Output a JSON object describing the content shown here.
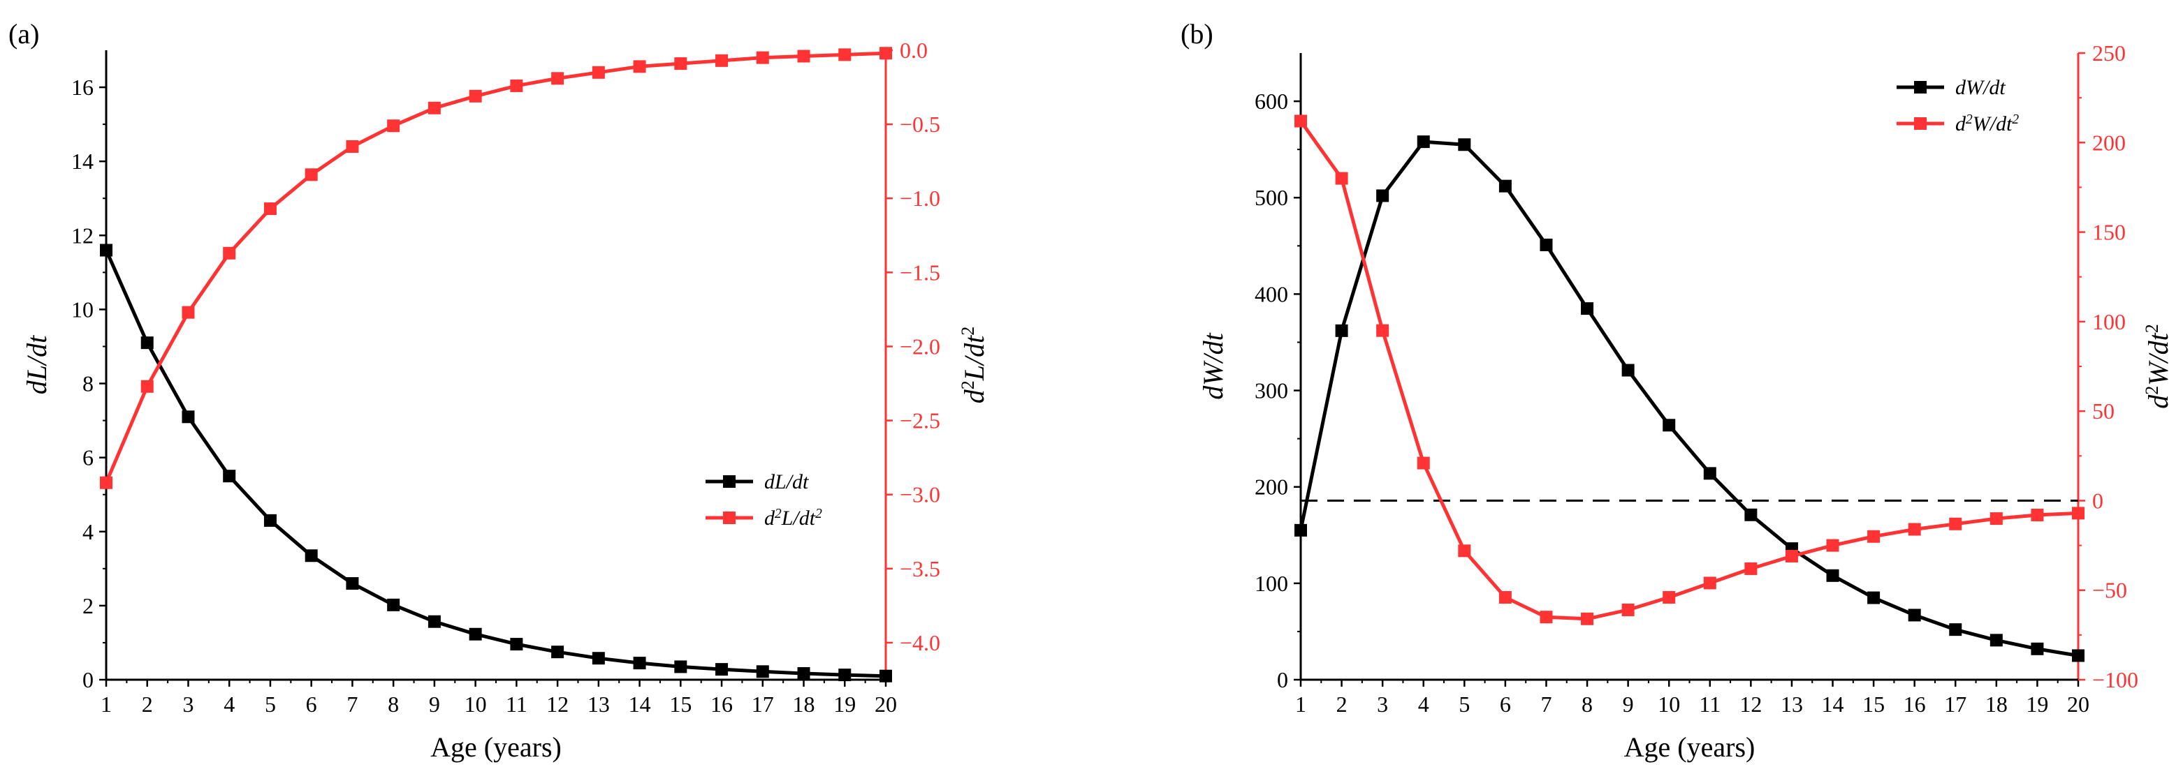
{
  "chart_data": [
    {
      "panel_label": "(a)",
      "type": "line",
      "x": [
        1,
        2,
        3,
        4,
        5,
        6,
        7,
        8,
        9,
        10,
        11,
        12,
        13,
        14,
        15,
        16,
        17,
        18,
        19,
        20
      ],
      "xlabel": "Age (years)",
      "xlim": [
        1,
        20
      ],
      "ylabel_left_main": "dL/dt",
      "ylabel_right_main": "d",
      "ylabel_right_sup": "2",
      "ylabel_right_tail": "L/dt",
      "ylim_left": [
        0,
        17
      ],
      "ylim_right": [
        -4.25,
        0
      ],
      "left_ticks": [
        "0",
        "2",
        "4",
        "6",
        "8",
        "10",
        "12",
        "14",
        "16"
      ],
      "right_ticks": [
        "0.0",
        "−0.5",
        "−1.0",
        "−1.5",
        "−2.0",
        "−2.5",
        "−3.0",
        "−3.5",
        "−4.0"
      ],
      "left_color": "#000000",
      "right_color": "#ff3333",
      "legend_position": "middle-right",
      "series": [
        {
          "name": "dL/dt",
          "axis": "left",
          "color": "#000000",
          "values": [
            11.6,
            9.1,
            7.1,
            5.5,
            4.3,
            3.35,
            2.6,
            2.02,
            1.57,
            1.23,
            0.96,
            0.75,
            0.58,
            0.45,
            0.35,
            0.28,
            0.22,
            0.17,
            0.13,
            0.1
          ]
        },
        {
          "name": "d2L/dt2",
          "axis": "right",
          "color": "#ff3333",
          "values": [
            -2.92,
            -2.27,
            -1.77,
            -1.37,
            -1.07,
            -0.84,
            -0.65,
            -0.51,
            -0.39,
            -0.31,
            -0.24,
            -0.19,
            -0.15,
            -0.11,
            -0.09,
            -0.07,
            -0.05,
            -0.04,
            -0.03,
            -0.02
          ]
        }
      ],
      "legend": [
        {
          "main": "dL/dt",
          "sup": "",
          "tail": ""
        },
        {
          "main": "d",
          "sup": "2",
          "tail": "L/dt",
          "sup2": "2"
        }
      ]
    },
    {
      "panel_label": "(b)",
      "type": "line",
      "x": [
        1,
        2,
        3,
        4,
        5,
        6,
        7,
        8,
        9,
        10,
        11,
        12,
        13,
        14,
        15,
        16,
        17,
        18,
        19,
        20
      ],
      "xlabel": "Age (years)",
      "xlim": [
        1,
        20
      ],
      "ylabel_left_main": "dW/dt",
      "ylabel_right_main": "d",
      "ylabel_right_sup": "2",
      "ylabel_right_tail": "W/dt",
      "ylim_left": [
        0,
        650
      ],
      "ylim_right": [
        -100,
        250
      ],
      "left_ticks": [
        "0",
        "100",
        "200",
        "300",
        "400",
        "500",
        "600"
      ],
      "right_ticks": [
        "−100",
        "−50",
        "0",
        "50",
        "100",
        "150",
        "200",
        "250"
      ],
      "left_color": "#000000",
      "right_color": "#ff3333",
      "zero_line_right": 0,
      "legend_position": "top-right",
      "series": [
        {
          "name": "dW/dt",
          "axis": "left",
          "color": "#000000",
          "values": [
            155,
            362,
            502,
            558,
            555,
            512,
            451,
            385,
            321,
            264,
            214,
            171,
            136,
            108,
            85,
            67,
            52,
            41,
            32,
            25
          ]
        },
        {
          "name": "d2W/dt2",
          "axis": "right",
          "color": "#ff3333",
          "values": [
            212,
            180,
            95,
            21,
            -28,
            -54,
            -65,
            -66,
            -61,
            -54,
            -46,
            -38,
            -31,
            -25,
            -20,
            -16,
            -13,
            -10,
            -8,
            -7
          ]
        }
      ],
      "legend": [
        {
          "main": "dW/dt",
          "sup": "",
          "tail": ""
        },
        {
          "main": "d",
          "sup": "2",
          "tail": "W/dt",
          "sup2": "2"
        }
      ]
    }
  ]
}
